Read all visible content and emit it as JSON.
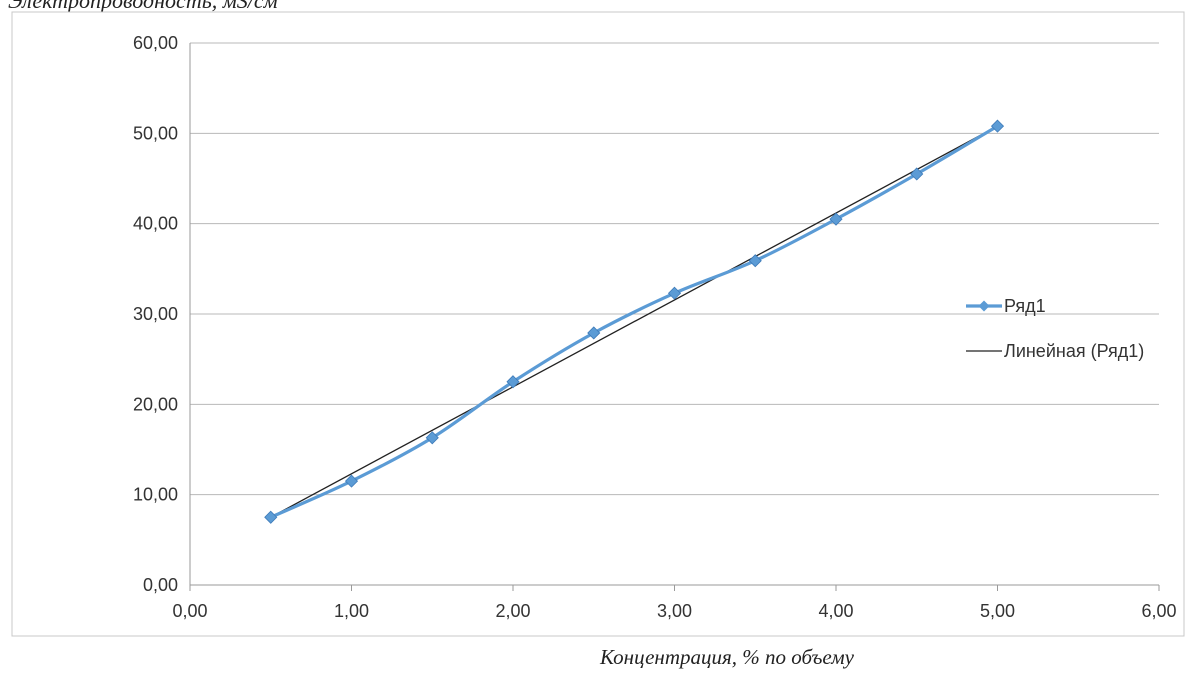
{
  "chart_data": {
    "type": "line",
    "ylabel": "Электропроводность, мS/cм",
    "xlabel": "Концентрация, % по объему",
    "xlim": [
      0,
      6
    ],
    "ylim": [
      0,
      60
    ],
    "x_ticks": [
      "0,00",
      "1,00",
      "2,00",
      "3,00",
      "4,00",
      "5,00",
      "6,00"
    ],
    "y_ticks": [
      "0,00",
      "10,00",
      "20,00",
      "30,00",
      "40,00",
      "50,00",
      "60,00"
    ],
    "grid": "horizontal",
    "legend_position": "right",
    "series": [
      {
        "name": "Ряд1",
        "color": "#5b9bd5",
        "marker": "diamond",
        "x": [
          0.5,
          1.0,
          1.5,
          2.0,
          2.5,
          3.0,
          3.5,
          4.0,
          4.5,
          5.0
        ],
        "y": [
          7.5,
          11.5,
          16.3,
          22.5,
          27.9,
          32.3,
          35.9,
          40.5,
          45.5,
          50.8
        ]
      },
      {
        "name": "Линейная (Ряд1)",
        "color": "#222222",
        "marker": "none",
        "x": [
          0.5,
          5.0
        ],
        "y": [
          7.5,
          50.8
        ]
      }
    ]
  }
}
